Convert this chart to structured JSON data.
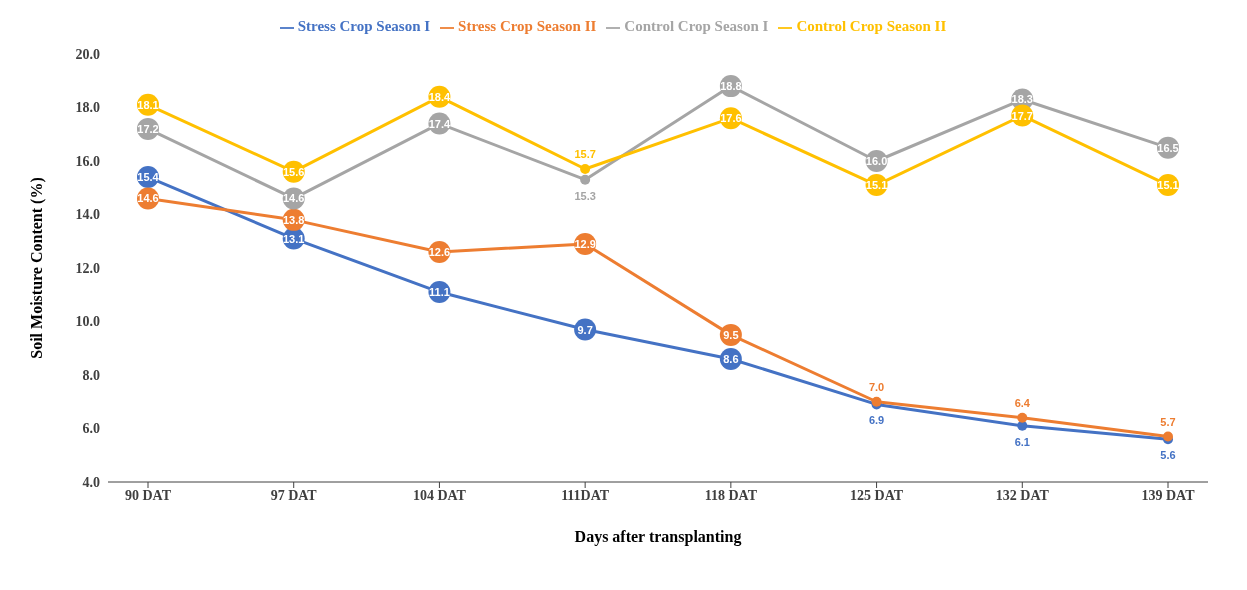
{
  "chart_data": {
    "type": "line",
    "xlabel": "Days after transplanting",
    "ylabel": "Soil Moisture Content (%)",
    "categories": [
      "90 DAT",
      "97 DAT",
      "104 DAT",
      "111DAT",
      "118 DAT",
      "125 DAT",
      "132 DAT",
      "139 DAT"
    ],
    "series": [
      {
        "name": "Stress  Crop Season I",
        "color": "#4472c4",
        "values": [
          15.4,
          13.1,
          11.1,
          9.7,
          8.6,
          6.9,
          6.1,
          5.6
        ],
        "value_labels": [
          "15.4",
          "13.1",
          "11.1",
          "9.7",
          "8.6",
          "6.9",
          "6.1",
          "5.6"
        ]
      },
      {
        "name": "Stress  Crop Season II",
        "color": "#ed7d31",
        "values": [
          14.6,
          13.8,
          12.6,
          12.9,
          9.5,
          7.0,
          6.4,
          5.7
        ],
        "value_labels": [
          "14.6",
          "13.8",
          "12.6",
          "12.9",
          "9.5",
          "7.0",
          "6.4",
          "5.7"
        ]
      },
      {
        "name": "Control  Crop Season I",
        "color": "#a5a5a5",
        "values": [
          17.2,
          14.6,
          17.4,
          15.3,
          18.8,
          16.0,
          18.3,
          16.5
        ],
        "value_labels": [
          "17.2",
          "14.6",
          "17.4",
          "15.3",
          "18.8",
          "16.0",
          "18.3",
          "16.5"
        ]
      },
      {
        "name": "Control  Crop Season II",
        "color": "#ffc000",
        "values": [
          18.1,
          15.6,
          18.4,
          15.7,
          17.6,
          15.1,
          17.7,
          15.1
        ],
        "value_labels": [
          "18.1",
          "15.6",
          "18.4",
          "15.7",
          "17.6",
          "15.1",
          "17.7",
          "15.1"
        ]
      }
    ],
    "ylim": [
      4,
      20
    ],
    "yticks": [
      {
        "value": 4,
        "label": "4.0"
      },
      {
        "value": 6,
        "label": "6.0"
      },
      {
        "value": 8,
        "label": "8.0"
      },
      {
        "value": 10,
        "label": "10.0"
      },
      {
        "value": 12,
        "label": "12.0"
      },
      {
        "value": 14,
        "label": "14.0"
      },
      {
        "value": 16,
        "label": "16.0"
      },
      {
        "value": 18,
        "label": "18.0"
      },
      {
        "value": 20,
        "label": "20.0"
      }
    ],
    "grid": false,
    "legend": "top",
    "marker": "circle",
    "line_style": "solid"
  }
}
